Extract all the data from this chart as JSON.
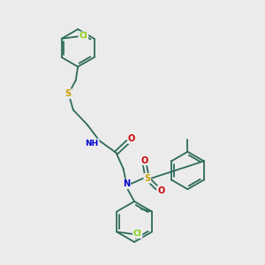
{
  "background_color": "#ebebeb",
  "bond_color": "#2d6b5a",
  "atom_colors": {
    "Cl": "#7fcc00",
    "S": "#c8a000",
    "N": "#0000cc",
    "O": "#cc0000",
    "H": "#888888",
    "C": "#2d6b5a"
  },
  "figsize": [
    3.0,
    3.0
  ],
  "dpi": 100
}
